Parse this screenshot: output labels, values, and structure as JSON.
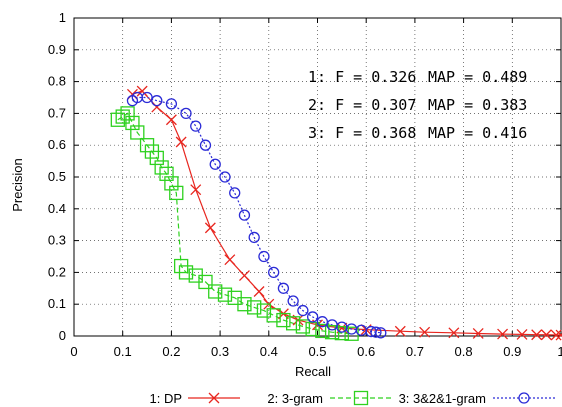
{
  "chart_data": {
    "type": "line",
    "xlabel": "Recall",
    "ylabel": "Precision",
    "xlim": [
      0,
      1
    ],
    "ylim": [
      0,
      1
    ],
    "x_ticks": [
      "0",
      "0.1",
      "0.2",
      "0.3",
      "0.4",
      "0.5",
      "0.6",
      "0.7",
      "0.8",
      "0.9",
      "1"
    ],
    "y_ticks": [
      "0",
      "0.1",
      "0.2",
      "0.3",
      "0.4",
      "0.5",
      "0.6",
      "0.7",
      "0.8",
      "0.9",
      "1"
    ],
    "grid": true,
    "legend_position": "bottom",
    "annotations": [
      {
        "label": "1: F = 0.326",
        "map": "MAP = 0.489"
      },
      {
        "label": "2: F = 0.307",
        "map": "MAP = 0.383"
      },
      {
        "label": "3: F = 0.368",
        "map": "MAP = 0.416"
      }
    ],
    "series": [
      {
        "name": "1: DP",
        "color": "#e8261f",
        "marker": "x",
        "line": "solid",
        "points": [
          [
            0.12,
            0.76
          ],
          [
            0.14,
            0.77
          ],
          [
            0.17,
            0.72
          ],
          [
            0.2,
            0.68
          ],
          [
            0.22,
            0.61
          ],
          [
            0.25,
            0.46
          ],
          [
            0.28,
            0.34
          ],
          [
            0.32,
            0.24
          ],
          [
            0.35,
            0.19
          ],
          [
            0.38,
            0.14
          ],
          [
            0.4,
            0.1
          ],
          [
            0.43,
            0.07
          ],
          [
            0.46,
            0.05
          ],
          [
            0.5,
            0.035
          ],
          [
            0.55,
            0.025
          ],
          [
            0.6,
            0.02
          ],
          [
            0.67,
            0.015
          ],
          [
            0.72,
            0.012
          ],
          [
            0.78,
            0.01
          ],
          [
            0.83,
            0.008
          ],
          [
            0.88,
            0.006
          ],
          [
            0.92,
            0.005
          ],
          [
            0.95,
            0.004
          ],
          [
            0.97,
            0.004
          ],
          [
            0.99,
            0.003
          ],
          [
            1.0,
            0.003
          ]
        ]
      },
      {
        "name": "2: 3-gram",
        "color": "#2ed11f",
        "marker": "square",
        "line": "dashed",
        "points": [
          [
            0.09,
            0.68
          ],
          [
            0.1,
            0.69
          ],
          [
            0.11,
            0.7
          ],
          [
            0.12,
            0.67
          ],
          [
            0.13,
            0.64
          ],
          [
            0.15,
            0.6
          ],
          [
            0.16,
            0.58
          ],
          [
            0.17,
            0.56
          ],
          [
            0.18,
            0.53
          ],
          [
            0.19,
            0.51
          ],
          [
            0.2,
            0.48
          ],
          [
            0.21,
            0.45
          ],
          [
            0.22,
            0.22
          ],
          [
            0.23,
            0.2
          ],
          [
            0.25,
            0.19
          ],
          [
            0.27,
            0.17
          ],
          [
            0.29,
            0.14
          ],
          [
            0.31,
            0.13
          ],
          [
            0.33,
            0.12
          ],
          [
            0.35,
            0.1
          ],
          [
            0.37,
            0.09
          ],
          [
            0.39,
            0.08
          ],
          [
            0.41,
            0.065
          ],
          [
            0.43,
            0.05
          ],
          [
            0.45,
            0.04
          ],
          [
            0.47,
            0.03
          ],
          [
            0.49,
            0.022
          ],
          [
            0.51,
            0.016
          ],
          [
            0.53,
            0.012
          ],
          [
            0.55,
            0.009
          ],
          [
            0.57,
            0.007
          ]
        ]
      },
      {
        "name": "3: 3&2&1-gram",
        "color": "#2b2bd6",
        "marker": "circle",
        "line": "dotted",
        "points": [
          [
            0.12,
            0.74
          ],
          [
            0.13,
            0.75
          ],
          [
            0.15,
            0.75
          ],
          [
            0.17,
            0.74
          ],
          [
            0.2,
            0.73
          ],
          [
            0.23,
            0.7
          ],
          [
            0.25,
            0.66
          ],
          [
            0.27,
            0.6
          ],
          [
            0.29,
            0.54
          ],
          [
            0.31,
            0.5
          ],
          [
            0.33,
            0.45
          ],
          [
            0.35,
            0.38
          ],
          [
            0.37,
            0.31
          ],
          [
            0.39,
            0.25
          ],
          [
            0.41,
            0.2
          ],
          [
            0.43,
            0.15
          ],
          [
            0.45,
            0.11
          ],
          [
            0.47,
            0.08
          ],
          [
            0.49,
            0.06
          ],
          [
            0.51,
            0.045
          ],
          [
            0.53,
            0.035
          ],
          [
            0.55,
            0.028
          ],
          [
            0.57,
            0.022
          ],
          [
            0.59,
            0.018
          ],
          [
            0.61,
            0.014
          ],
          [
            0.62,
            0.012
          ],
          [
            0.63,
            0.01
          ]
        ]
      }
    ]
  }
}
